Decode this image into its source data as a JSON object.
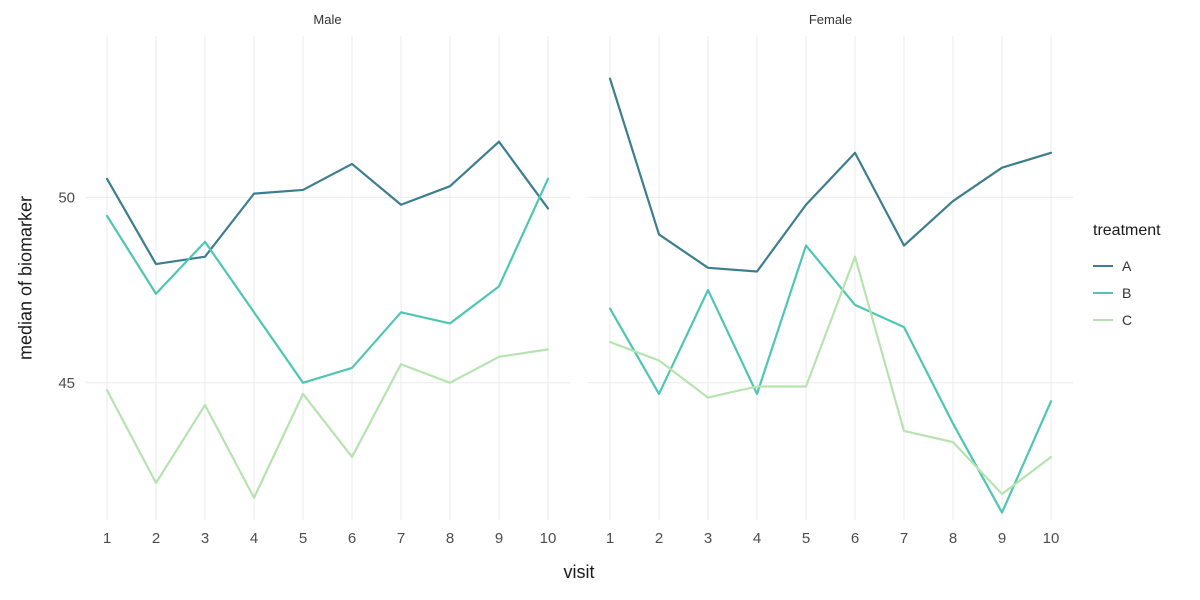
{
  "chart_data": {
    "type": "line",
    "title": "",
    "xlabel": "visit",
    "ylabel": "median of biomarker",
    "legend_title": "treatment",
    "legend_position": "right",
    "grid": true,
    "facets": [
      "Male",
      "Female"
    ],
    "x": [
      1,
      2,
      3,
      4,
      5,
      6,
      7,
      8,
      9,
      10
    ],
    "ylim": [
      41.3,
      54.35
    ],
    "yticks": [
      45,
      50
    ],
    "series": [
      {
        "name": "A",
        "color": "#3d7e8e",
        "values": [
          [
            50.5,
            48.2,
            48.4,
            50.1,
            50.2,
            50.9,
            49.8,
            50.3,
            51.5,
            49.7
          ],
          [
            53.2,
            49.0,
            48.1,
            48.0,
            49.8,
            51.2,
            48.7,
            49.9,
            50.8,
            51.2
          ]
        ]
      },
      {
        "name": "B",
        "color": "#4fc6b3",
        "values": [
          [
            49.5,
            47.4,
            48.8,
            46.9,
            45.0,
            45.4,
            46.9,
            46.6,
            47.6,
            50.5
          ],
          [
            47.0,
            44.7,
            47.5,
            44.7,
            48.7,
            47.1,
            46.5,
            43.9,
            41.5,
            44.5
          ]
        ]
      },
      {
        "name": "C",
        "color": "#b7e3b0",
        "values": [
          [
            44.8,
            42.3,
            44.4,
            41.9,
            44.7,
            43.0,
            45.5,
            45.0,
            45.7,
            45.9
          ],
          [
            46.1,
            45.6,
            44.6,
            44.9,
            44.9,
            48.4,
            43.7,
            43.4,
            42.0,
            43.0
          ]
        ]
      }
    ],
    "colors": {
      "grid": "#ebebeb",
      "background": "#ffffff",
      "axis_text": "#4d4d4d",
      "title_text": "#1a1a1a"
    }
  }
}
